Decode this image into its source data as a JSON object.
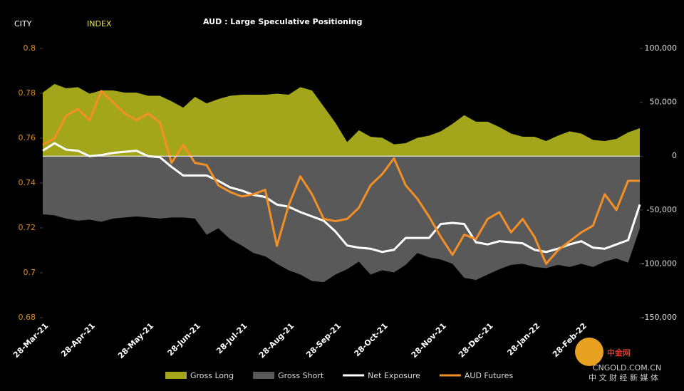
{
  "brand": {
    "part1": "CITY",
    "part2": "INDEX"
  },
  "watermark": {
    "logo": "中金网",
    "site": "CNGOLD.COM.CN",
    "tagline": "中 文 财 经 新 媒 体"
  },
  "chart_data": {
    "type": "area_line_dual",
    "title": "AUD : Large Speculative Positioning",
    "categories": [
      "28-Mar-21",
      null,
      null,
      null,
      "28-Apr-21",
      null,
      null,
      null,
      null,
      "28-May-21",
      null,
      null,
      null,
      "28-Jun-21",
      null,
      null,
      null,
      "28-Jul-21",
      null,
      null,
      null,
      "28-Aug-21",
      null,
      null,
      null,
      "28-Sep-21",
      null,
      null,
      null,
      "28-Oct-21",
      null,
      null,
      null,
      null,
      "28-Nov-21",
      null,
      null,
      null,
      "28-Dec-21",
      null,
      null,
      null,
      "28-Jan-22",
      null,
      null,
      null,
      "28-Feb-22",
      null,
      null,
      null,
      null,
      null
    ],
    "ylim": [
      0.68,
      0.8
    ],
    "yticks": [
      0.68,
      0.7,
      0.72,
      0.74,
      0.76,
      0.78,
      0.8
    ],
    "y2lim": [
      -150000,
      100000
    ],
    "y2ticks": [
      {
        "value": -150000,
        "label": "-150,000"
      },
      {
        "value": -100000,
        "label": "-100,000"
      },
      {
        "value": -50000,
        "label": "-50,000"
      },
      0,
      {
        "value": 50000,
        "label": "50,000"
      },
      {
        "value": 100000,
        "label": "100,000"
      }
    ],
    "series": [
      {
        "name": "Gross Long",
        "kind": "area",
        "axis": "y2",
        "color": "#a3a51b",
        "values": [
          59000,
          67000,
          63000,
          64000,
          58000,
          61000,
          61000,
          59000,
          59000,
          56000,
          56000,
          51000,
          45000,
          55000,
          49000,
          53000,
          56000,
          57000,
          57000,
          57000,
          58000,
          57000,
          64000,
          61000,
          46000,
          31000,
          13000,
          24000,
          18000,
          17000,
          11000,
          12000,
          17000,
          19000,
          23000,
          30000,
          38000,
          32000,
          32000,
          27000,
          21000,
          18000,
          18000,
          14000,
          19000,
          23000,
          21000,
          15000,
          14000,
          16000,
          22000,
          26000
        ]
      },
      {
        "name": "Gross Short",
        "kind": "area",
        "axis": "y2",
        "color": "#595959",
        "values": [
          -54000,
          -55000,
          -58000,
          -60000,
          -59000,
          -61000,
          -58000,
          -57000,
          -56000,
          -57000,
          -58000,
          -57000,
          -57000,
          -58000,
          -73000,
          -67000,
          -77000,
          -83000,
          -90000,
          -93000,
          -100000,
          -106000,
          -110000,
          -116000,
          -117000,
          -110000,
          -105000,
          -98000,
          -110000,
          -106000,
          -108000,
          -101000,
          -90000,
          -94000,
          -96000,
          -100000,
          -113000,
          -115000,
          -110000,
          -105000,
          -101000,
          -100000,
          -103000,
          -104000,
          -101000,
          -103000,
          -100000,
          -103000,
          -98000,
          -95000,
          -99000,
          -67000
        ]
      },
      {
        "name": "Net Exposure",
        "kind": "line",
        "axis": "y2",
        "color": "#ffffff",
        "values": [
          5000,
          12000,
          6000,
          5000,
          0,
          1000,
          3000,
          4000,
          5000,
          0,
          -1000,
          -10000,
          -18000,
          -18000,
          -18000,
          -23000,
          -29000,
          -32000,
          -36000,
          -38000,
          -45000,
          -47000,
          -52000,
          -56000,
          -60000,
          -70000,
          -83000,
          -85000,
          -86000,
          -89000,
          -87000,
          -76000,
          -76000,
          -76000,
          -63000,
          -62000,
          -63000,
          -80000,
          -82000,
          -79000,
          -80000,
          -81000,
          -87000,
          -89000,
          -86000,
          -82000,
          -79000,
          -85000,
          -86000,
          -82000,
          -78000,
          -45000
        ]
      },
      {
        "name": "AUD Futures",
        "kind": "line",
        "axis": "y",
        "color": "#f39025",
        "values": [
          0.757,
          0.76,
          0.77,
          0.773,
          0.768,
          0.781,
          0.776,
          0.771,
          0.768,
          0.771,
          0.767,
          0.749,
          0.757,
          0.749,
          0.748,
          0.739,
          0.736,
          0.734,
          0.735,
          0.737,
          0.712,
          0.73,
          0.743,
          0.735,
          0.724,
          0.723,
          0.724,
          0.729,
          0.739,
          0.744,
          0.751,
          0.739,
          0.733,
          0.725,
          0.716,
          0.708,
          0.717,
          0.715,
          0.724,
          0.727,
          0.718,
          0.724,
          0.716,
          0.704,
          0.71,
          0.714,
          0.718,
          0.721,
          0.735,
          0.728,
          0.741,
          0.741
        ]
      }
    ]
  }
}
